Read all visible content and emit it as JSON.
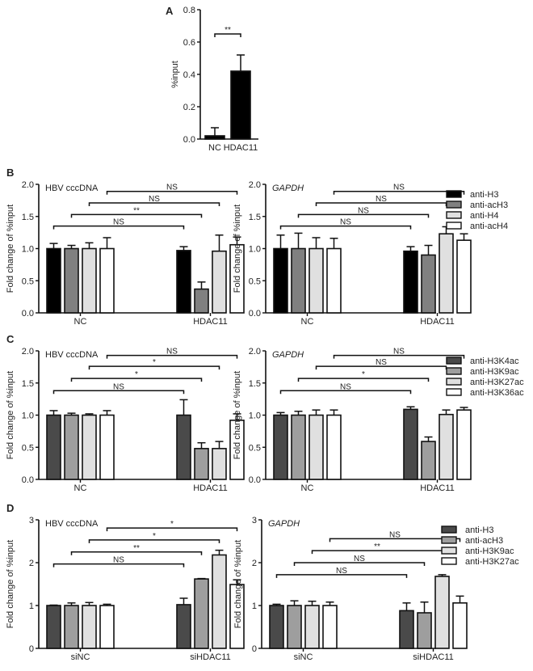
{
  "chart_data": [
    {
      "id": "A",
      "type": "bar",
      "panel_label": "A",
      "title": "",
      "ylabel": "%input",
      "ylim": [
        0,
        0.8
      ],
      "yticks": [
        "0.0",
        "0.2",
        "0.4",
        "0.6",
        "0.8"
      ],
      "ytick_values": [
        0,
        0.2,
        0.4,
        0.6,
        0.8
      ],
      "categories": [
        "NC",
        "HDAC11"
      ],
      "series": [
        {
          "name": "",
          "values": [
            0.02,
            0.42
          ],
          "errors": [
            0.05,
            0.1
          ],
          "color": "#000000"
        }
      ],
      "significance": [
        {
          "from": [
            0,
            0
          ],
          "to": [
            1,
            0
          ],
          "label": "**",
          "level": 0.65
        }
      ]
    },
    {
      "id": "B-left",
      "type": "bar",
      "panel_label": "B",
      "title": "HBV cccDNA",
      "title_italic": false,
      "ylabel": "Fold change of %input",
      "ylim": [
        0,
        2.0
      ],
      "yticks": [
        "0.0",
        "0.5",
        "1.0",
        "1.5",
        "2.0"
      ],
      "ytick_values": [
        0,
        0.5,
        1.0,
        1.5,
        2.0
      ],
      "categories": [
        "NC",
        "HDAC11"
      ],
      "series": [
        {
          "name": "anti-H3",
          "values": [
            1.0,
            0.97
          ],
          "errors": [
            0.08,
            0.06
          ],
          "color": "#000000"
        },
        {
          "name": "anti-acH3",
          "values": [
            1.0,
            0.37
          ],
          "errors": [
            0.05,
            0.11
          ],
          "color": "#808080"
        },
        {
          "name": "anti-H4",
          "values": [
            1.0,
            0.96
          ],
          "errors": [
            0.09,
            0.25
          ],
          "color": "#e0e0e0"
        },
        {
          "name": "anti-acH4",
          "values": [
            1.0,
            1.06
          ],
          "errors": [
            0.17,
            0.12
          ],
          "color": "#ffffff"
        }
      ],
      "significance": [
        {
          "series": 0,
          "label": "NS",
          "level": 1.35
        },
        {
          "series": 1,
          "label": "**",
          "level": 1.53
        },
        {
          "series": 2,
          "label": "NS",
          "level": 1.71
        },
        {
          "series": 3,
          "label": "NS",
          "level": 1.89
        }
      ]
    },
    {
      "id": "B-right",
      "type": "bar",
      "panel_label": "",
      "title": "GAPDH",
      "title_italic": true,
      "ylabel": "Fold change of %input",
      "ylim": [
        0,
        2.0
      ],
      "yticks": [
        "0.0",
        "0.5",
        "1.0",
        "1.5",
        "2.0"
      ],
      "ytick_values": [
        0,
        0.5,
        1.0,
        1.5,
        2.0
      ],
      "categories": [
        "NC",
        "HDAC11"
      ],
      "series": [
        {
          "name": "anti-H3",
          "values": [
            1.0,
            0.96
          ],
          "errors": [
            0.21,
            0.07
          ],
          "color": "#000000"
        },
        {
          "name": "anti-acH3",
          "values": [
            1.0,
            0.9
          ],
          "errors": [
            0.24,
            0.15
          ],
          "color": "#808080"
        },
        {
          "name": "anti-H4",
          "values": [
            1.0,
            1.23
          ],
          "errors": [
            0.17,
            0.11
          ],
          "color": "#e0e0e0"
        },
        {
          "name": "anti-acH4",
          "values": [
            1.0,
            1.13
          ],
          "errors": [
            0.16,
            0.1
          ],
          "color": "#ffffff"
        }
      ],
      "significance": [
        {
          "series": 0,
          "label": "NS",
          "level": 1.35
        },
        {
          "series": 1,
          "label": "NS",
          "level": 1.53
        },
        {
          "series": 2,
          "label": "NS",
          "level": 1.71
        },
        {
          "series": 3,
          "label": "NS",
          "level": 1.89
        }
      ],
      "legend": [
        "anti-H3",
        "anti-acH3",
        "anti-H4",
        "anti-acH4"
      ],
      "legend_position": "right"
    },
    {
      "id": "C-left",
      "type": "bar",
      "panel_label": "C",
      "title": "HBV cccDNA",
      "title_italic": false,
      "ylabel": "Fold change of %input",
      "ylim": [
        0,
        2.0
      ],
      "yticks": [
        "0.0",
        "0.5",
        "1.0",
        "1.5",
        "2.0"
      ],
      "ytick_values": [
        0,
        0.5,
        1.0,
        1.5,
        2.0
      ],
      "categories": [
        "NC",
        "HDAC11"
      ],
      "series": [
        {
          "name": "anti-H3K4ac",
          "values": [
            1.0,
            1.0
          ],
          "errors": [
            0.07,
            0.24
          ],
          "color": "#4a4a4a"
        },
        {
          "name": "anti-H3K9ac",
          "values": [
            1.0,
            0.48
          ],
          "errors": [
            0.03,
            0.09
          ],
          "color": "#9e9e9e"
        },
        {
          "name": "anti-H3K27ac",
          "values": [
            1.0,
            0.48
          ],
          "errors": [
            0.02,
            0.11
          ],
          "color": "#e0e0e0"
        },
        {
          "name": "anti-H3K36ac",
          "values": [
            1.0,
            0.92
          ],
          "errors": [
            0.07,
            0.1
          ],
          "color": "#ffffff"
        }
      ],
      "significance": [
        {
          "series": 0,
          "label": "NS",
          "level": 1.38
        },
        {
          "series": 1,
          "label": "*",
          "level": 1.57
        },
        {
          "series": 2,
          "label": "*",
          "level": 1.76
        },
        {
          "series": 3,
          "label": "NS",
          "level": 1.93
        }
      ]
    },
    {
      "id": "C-right",
      "type": "bar",
      "panel_label": "",
      "title": "GAPDH",
      "title_italic": true,
      "ylabel": "Fold change of %input",
      "ylim": [
        0,
        2.0
      ],
      "yticks": [
        "0.0",
        "0.5",
        "1.0",
        "1.5",
        "2.0"
      ],
      "ytick_values": [
        0,
        0.5,
        1.0,
        1.5,
        2.0
      ],
      "categories": [
        "NC",
        "HDAC11"
      ],
      "series": [
        {
          "name": "anti-H3K4ac",
          "values": [
            1.0,
            1.09
          ],
          "errors": [
            0.04,
            0.04
          ],
          "color": "#4a4a4a"
        },
        {
          "name": "anti-H3K9ac",
          "values": [
            1.0,
            0.59
          ],
          "errors": [
            0.06,
            0.07
          ],
          "color": "#9e9e9e"
        },
        {
          "name": "anti-H3K27ac",
          "values": [
            1.0,
            1.01
          ],
          "errors": [
            0.08,
            0.07
          ],
          "color": "#e0e0e0"
        },
        {
          "name": "anti-H3K36ac",
          "values": [
            1.0,
            1.08
          ],
          "errors": [
            0.08,
            0.04
          ],
          "color": "#ffffff"
        }
      ],
      "significance": [
        {
          "series": 0,
          "label": "NS",
          "level": 1.38
        },
        {
          "series": 1,
          "label": "*",
          "level": 1.57
        },
        {
          "series": 2,
          "label": "NS",
          "level": 1.76
        },
        {
          "series": 3,
          "label": "NS",
          "level": 1.93
        }
      ],
      "legend": [
        "anti-H3K4ac",
        "anti-H3K9ac",
        "anti-H3K27ac",
        "anti-H3K36ac"
      ],
      "legend_position": "right"
    },
    {
      "id": "D-left",
      "type": "bar",
      "panel_label": "D",
      "title": "HBV cccDNA",
      "title_italic": false,
      "ylabel": "Fold change of %input",
      "ylim": [
        0,
        3
      ],
      "yticks": [
        "0",
        "1",
        "2",
        "3"
      ],
      "ytick_values": [
        0,
        1,
        2,
        3
      ],
      "categories": [
        "siNC",
        "siHDAC11"
      ],
      "series": [
        {
          "name": "anti-H3",
          "values": [
            1.0,
            1.02
          ],
          "errors": [
            0.01,
            0.15
          ],
          "color": "#4a4a4a"
        },
        {
          "name": "anti-acH3",
          "values": [
            1.0,
            1.62
          ],
          "errors": [
            0.06,
            0.01
          ],
          "color": "#9e9e9e"
        },
        {
          "name": "anti-H3K9ac",
          "values": [
            1.0,
            2.18
          ],
          "errors": [
            0.07,
            0.11
          ],
          "color": "#e0e0e0"
        },
        {
          "name": "anti-H3K27ac",
          "values": [
            1.0,
            1.49
          ],
          "errors": [
            0.03,
            0.11
          ],
          "color": "#ffffff"
        }
      ],
      "significance": [
        {
          "series": 0,
          "label": "NS",
          "level": 1.97
        },
        {
          "series": 1,
          "label": "**",
          "level": 2.25
        },
        {
          "series": 2,
          "label": "*",
          "level": 2.53
        },
        {
          "series": 3,
          "label": "*",
          "level": 2.81
        }
      ]
    },
    {
      "id": "D-right",
      "type": "bar",
      "panel_label": "",
      "title": "GAPDH",
      "title_italic": true,
      "ylabel": "Fold change of %input",
      "ylim": [
        0,
        3
      ],
      "yticks": [
        "0",
        "1",
        "2",
        "3"
      ],
      "ytick_values": [
        0,
        1,
        2,
        3
      ],
      "categories": [
        "siNC",
        "siHDAC11"
      ],
      "series": [
        {
          "name": "anti-H3",
          "values": [
            1.0,
            0.88
          ],
          "errors": [
            0.03,
            0.18
          ],
          "color": "#4a4a4a"
        },
        {
          "name": "anti-acH3",
          "values": [
            1.0,
            0.83
          ],
          "errors": [
            0.11,
            0.25
          ],
          "color": "#9e9e9e"
        },
        {
          "name": "anti-H3K9ac",
          "values": [
            1.0,
            1.68
          ],
          "errors": [
            0.1,
            0.04
          ],
          "color": "#e0e0e0"
        },
        {
          "name": "anti-H3K27ac",
          "values": [
            1.0,
            1.06
          ],
          "errors": [
            0.08,
            0.16
          ],
          "color": "#ffffff"
        }
      ],
      "significance": [
        {
          "series": 0,
          "label": "NS",
          "level": 1.72
        },
        {
          "series": 1,
          "label": "NS",
          "level": 2.0
        },
        {
          "series": 2,
          "label": "**",
          "level": 2.28
        },
        {
          "series": 3,
          "label": "NS",
          "level": 2.56
        }
      ],
      "legend": [
        "anti-H3",
        "anti-acH3",
        "anti-H3K9ac",
        "anti-H3K27ac"
      ],
      "legend_position": "right"
    }
  ]
}
